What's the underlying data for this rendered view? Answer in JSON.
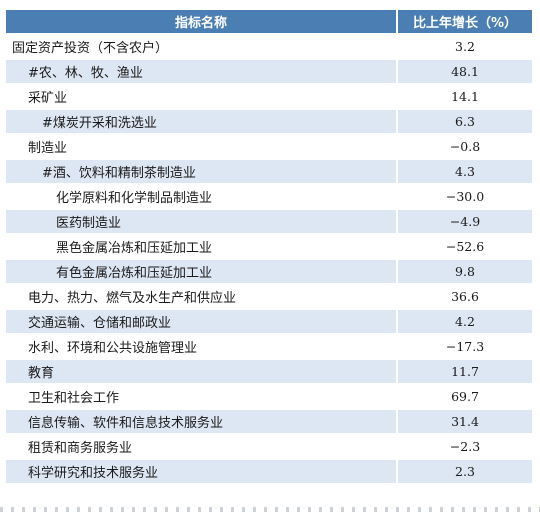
{
  "header": {
    "col_name": "指标名称",
    "col_growth": "比上年增长（%）"
  },
  "rows": [
    {
      "name": "固定资产投资（不含农户）",
      "value": "3.2",
      "indent": 0
    },
    {
      "name": "#农、林、牧、渔业",
      "value": "48.1",
      "indent": 1
    },
    {
      "name": "采矿业",
      "value": "14.1",
      "indent": 1
    },
    {
      "name": "#煤炭开采和洗选业",
      "value": "6.3",
      "indent": 2
    },
    {
      "name": "制造业",
      "value": "−0.8",
      "indent": 1
    },
    {
      "name": "#酒、饮料和精制茶制造业",
      "value": "4.3",
      "indent": 2
    },
    {
      "name": "化学原料和化学制品制造业",
      "value": "−30.0",
      "indent": 3
    },
    {
      "name": "医药制造业",
      "value": "−4.9",
      "indent": 3
    },
    {
      "name": "黑色金属冶炼和压延加工业",
      "value": "−52.6",
      "indent": 3
    },
    {
      "name": "有色金属冶炼和压延加工业",
      "value": "9.8",
      "indent": 3
    },
    {
      "name": "电力、热力、燃气及水生产和供应业",
      "value": "36.6",
      "indent": 1
    },
    {
      "name": "交通运输、仓储和邮政业",
      "value": "4.2",
      "indent": 1
    },
    {
      "name": "水利、环境和公共设施管理业",
      "value": "−17.3",
      "indent": 1
    },
    {
      "name": "教育",
      "value": "11.7",
      "indent": 1
    },
    {
      "name": "卫生和社会工作",
      "value": "69.7",
      "indent": 1
    },
    {
      "name": "信息传输、软件和信息技术服务业",
      "value": "31.4",
      "indent": 1
    },
    {
      "name": "租赁和商务服务业",
      "value": "−2.3",
      "indent": 1
    },
    {
      "name": "科学研究和技术服务业",
      "value": "2.3",
      "indent": 1
    }
  ],
  "colors": {
    "header_bg": "#4b7fb3",
    "stripe_bg": "#dde6f3"
  }
}
